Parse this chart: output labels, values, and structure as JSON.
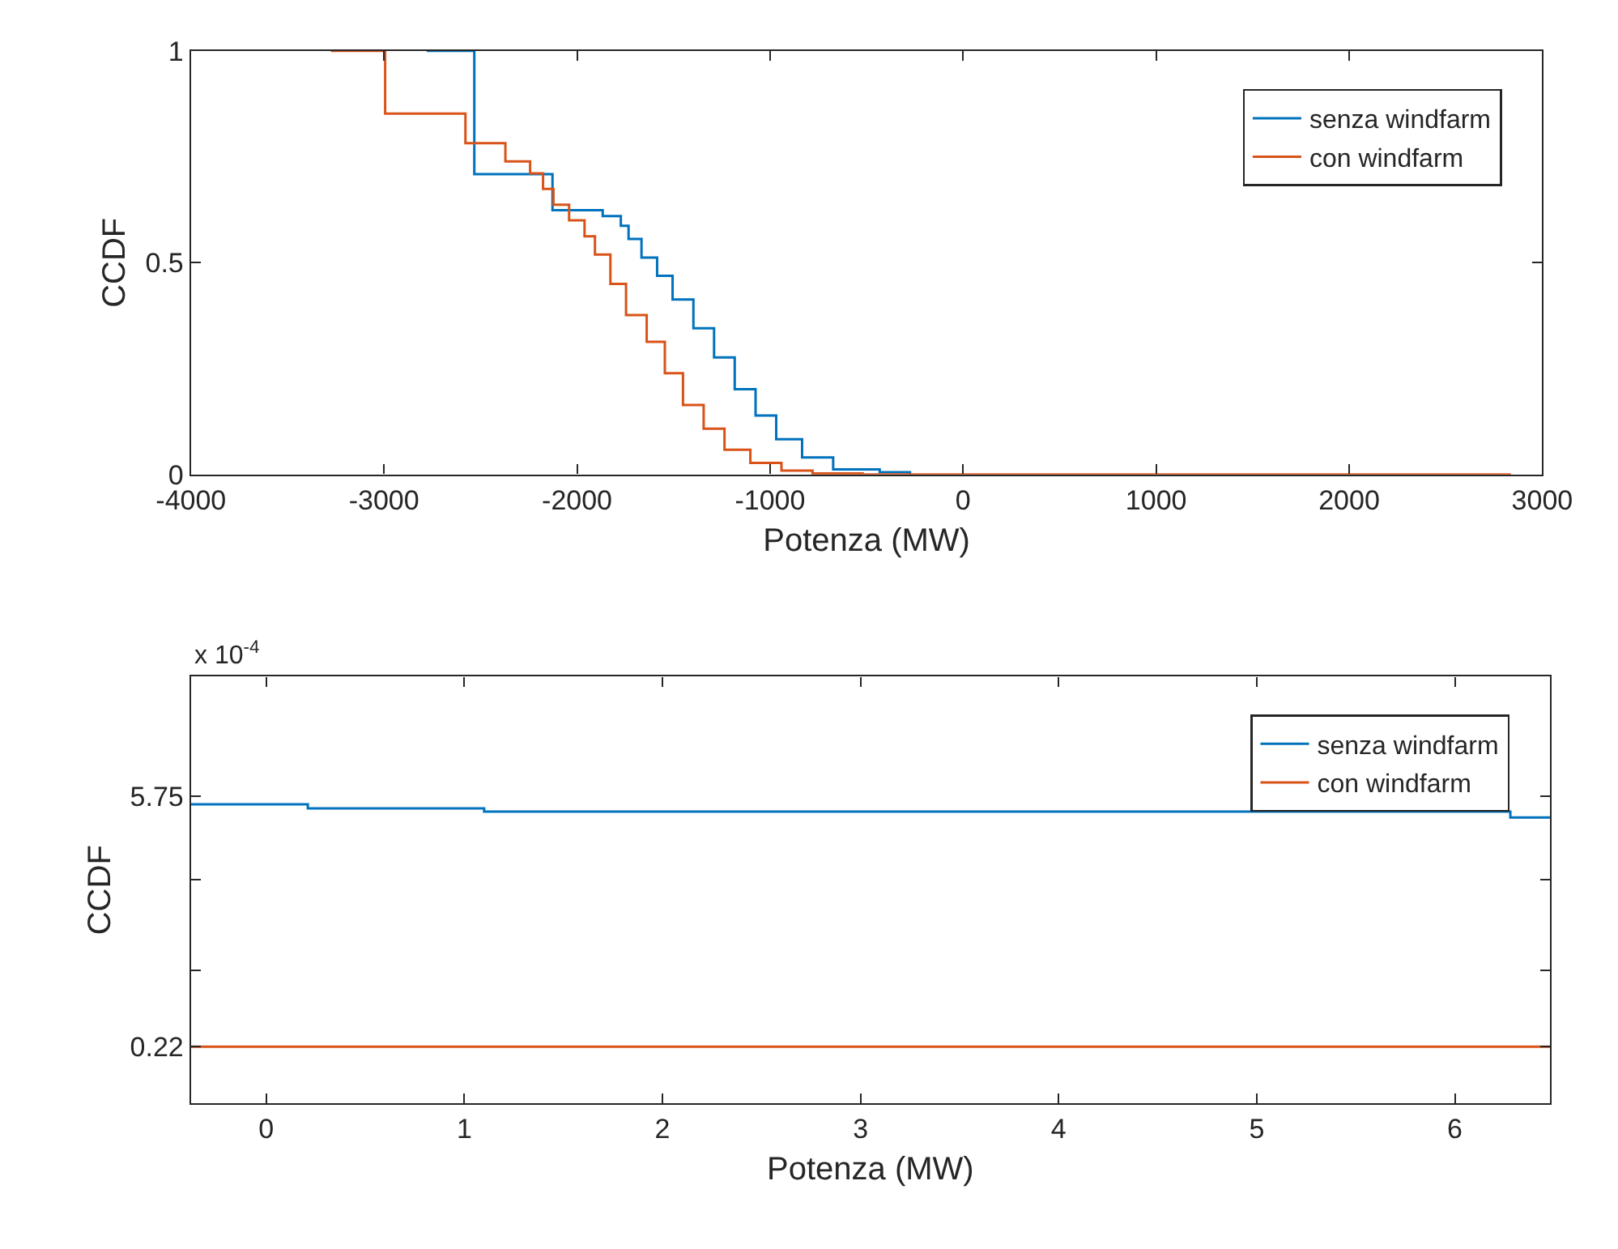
{
  "chart_data": [
    {
      "type": "step",
      "xlabel": "Potenza (MW)",
      "ylabel": "CCDF",
      "xlim": [
        -4000,
        3000
      ],
      "ylim": [
        0,
        1
      ],
      "xticks": [
        -4000,
        -3000,
        -2000,
        -1000,
        0,
        1000,
        2000,
        3000
      ],
      "yticks": [
        0,
        0.5,
        1
      ],
      "legend": "top right",
      "series": [
        {
          "name": "senza windfarm",
          "color": "#0072bd",
          "x": [
            -2779,
            -2532,
            -2127,
            -1867,
            -1773,
            -1733,
            -1666,
            -1585,
            -1505,
            -1397,
            -1290,
            -1183,
            -1075,
            -968,
            -834,
            -673,
            -432,
            -275
          ],
          "values": [
            1,
            0.709,
            0.624,
            0.61,
            0.587,
            0.556,
            0.512,
            0.469,
            0.413,
            0.345,
            0.276,
            0.201,
            0.139,
            0.083,
            0.04,
            0.012,
            0.005,
            0
          ]
        },
        {
          "name": "con windfarm",
          "color": "#d95319",
          "x": [
            -3275,
            -2994,
            -2578,
            -2371,
            -2243,
            -2176,
            -2122,
            -2041,
            -1961,
            -1907,
            -1827,
            -1746,
            -1639,
            -1545,
            -1451,
            -1344,
            -1236,
            -1102,
            -941,
            -780,
            -593,
            -520,
            2838
          ],
          "values": [
            1,
            0.852,
            0.782,
            0.739,
            0.711,
            0.674,
            0.637,
            0.6,
            0.562,
            0.519,
            0.45,
            0.376,
            0.313,
            0.239,
            0.164,
            0.108,
            0.058,
            0.027,
            0.009,
            0.002,
            0.002,
            0,
            0
          ]
        }
      ]
    },
    {
      "type": "step",
      "xlabel": "Potenza (MW)",
      "ylabel": "CCDF",
      "xlim": [
        -0.38,
        6.48
      ],
      "ylim": [
        -1.03,
        8.39
      ],
      "xticks": [
        0,
        1,
        2,
        3,
        4,
        5,
        6
      ],
      "yticks": [
        0.22,
        {
          "value": 1.9,
          "label": null
        },
        {
          "value": 3.9,
          "label": null
        },
        5.75
      ],
      "legend": "top right",
      "annotations": [
        "x 10$^{-4}$"
      ],
      "series": [
        {
          "name": "senza windfarm",
          "color": "#0072bd",
          "x": [
            -0.38,
            0.21,
            1.1,
            6.28,
            6.48
          ],
          "values": [
            5.57,
            5.48,
            5.41,
            5.28,
            5.28
          ]
        },
        {
          "name": "con windfarm",
          "color": "#d95319",
          "x": [
            -0.38,
            6.48
          ],
          "values": [
            0.22,
            0.22
          ]
        }
      ]
    }
  ]
}
